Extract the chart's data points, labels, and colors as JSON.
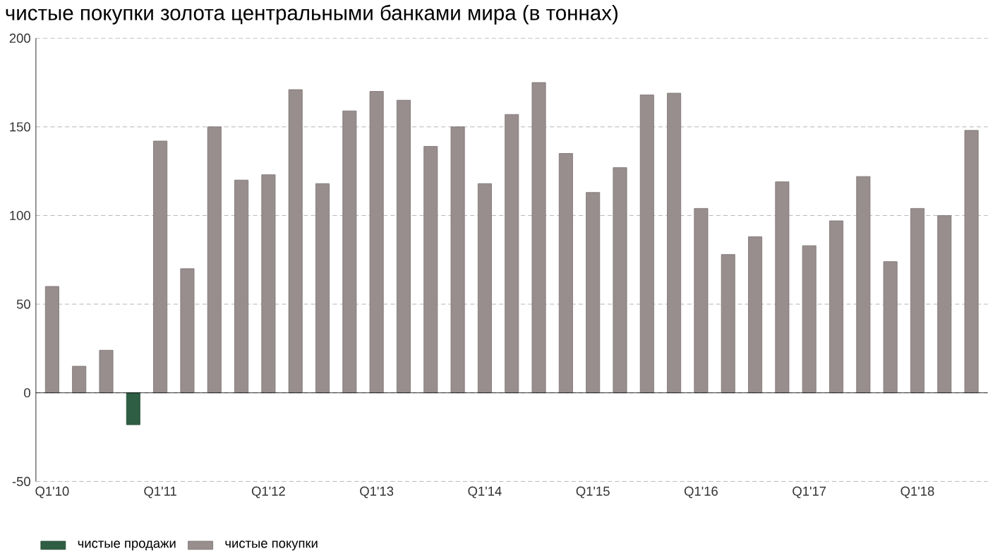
{
  "chart_data": {
    "type": "bar",
    "title": "чистые покупки золота центральными банками мира (в тоннах)",
    "categories": [
      "Q1'10",
      null,
      null,
      null,
      "Q1'11",
      null,
      null,
      null,
      "Q1'12",
      null,
      null,
      null,
      "Q1'13",
      null,
      null,
      null,
      "Q1'14",
      null,
      null,
      null,
      "Q1'15",
      null,
      null,
      null,
      "Q1'16",
      null,
      null,
      null,
      "Q1'17",
      null,
      null,
      null,
      "Q1'18",
      null,
      null
    ],
    "series": [
      {
        "name": "чистые продажи",
        "color": "#2e5e44",
        "values": [
          null,
          null,
          null,
          -18,
          null,
          null,
          null,
          null,
          null,
          null,
          null,
          null,
          null,
          null,
          null,
          null,
          null,
          null,
          null,
          null,
          null,
          null,
          null,
          null,
          null,
          null,
          null,
          null,
          null,
          null,
          null,
          null,
          null,
          null,
          null
        ]
      },
      {
        "name": "чистые покупки",
        "color": "#998e8e",
        "values": [
          60,
          15,
          24,
          null,
          142,
          70,
          150,
          120,
          123,
          171,
          118,
          159,
          170,
          165,
          139,
          150,
          118,
          157,
          175,
          135,
          113,
          127,
          168,
          169,
          104,
          78,
          88,
          119,
          83,
          97,
          122,
          74,
          104,
          100,
          148
        ]
      }
    ],
    "stacked": true,
    "ylim": [
      -50,
      200
    ],
    "yticks": [
      -50,
      0,
      50,
      100,
      150,
      200
    ],
    "grid": "y",
    "legend": "bottom left"
  }
}
